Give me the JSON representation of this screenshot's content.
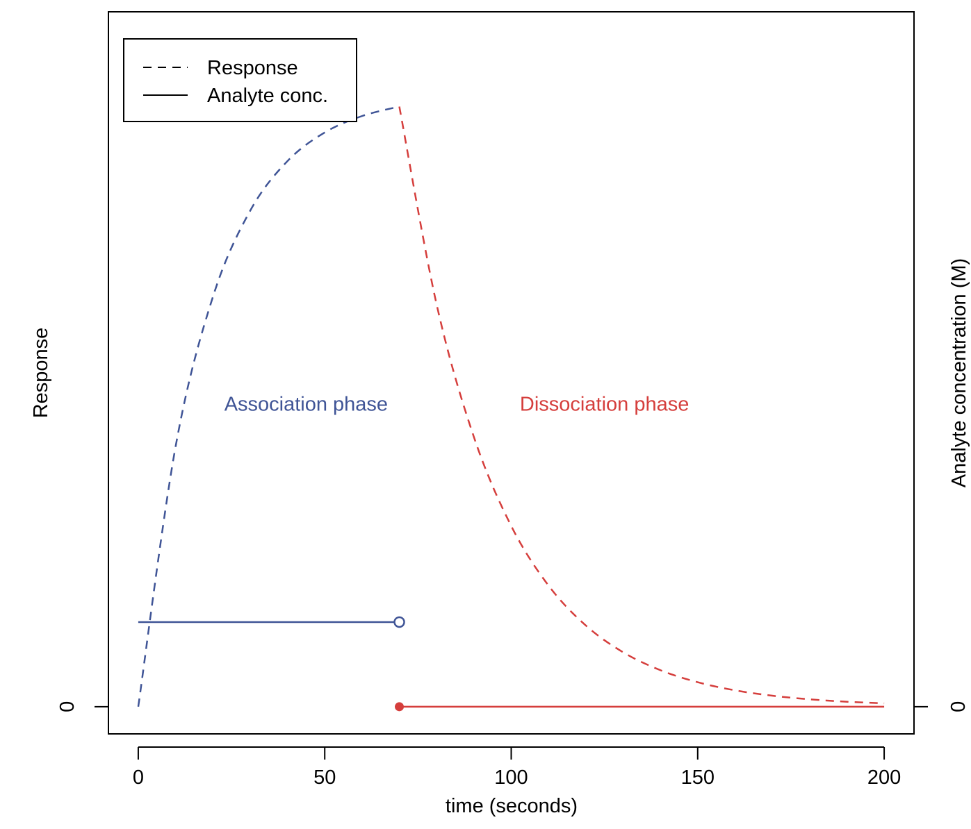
{
  "chart_data": {
    "type": "line",
    "title": "",
    "xlabel": "time (seconds)",
    "ylabel": "Response",
    "y2label": "Analyte concentration (M)",
    "xlim": [
      -8,
      208
    ],
    "ylim": [
      -0.045,
      1.15
    ],
    "x_ticks": [
      0,
      50,
      100,
      150,
      200
    ],
    "x_tick_labels": [
      "0",
      "50",
      "100",
      "150",
      "200"
    ],
    "y_ticks": [
      0
    ],
    "y_tick_labels": [
      "0"
    ],
    "y2_ticks": [
      0
    ],
    "y2_tick_labels": [
      "0"
    ],
    "grid": false,
    "legend": {
      "position": "top-left",
      "entries": [
        {
          "label": "Response",
          "style": "dashed"
        },
        {
          "label": "Analyte conc.",
          "style": "solid"
        }
      ]
    },
    "series": [
      {
        "phase": "association",
        "style": "dashed",
        "color": "#3F5496",
        "x": [
          0,
          10,
          20,
          30,
          40,
          50,
          60,
          70
        ],
        "y": [
          0,
          0.4302,
          0.678,
          0.8207,
          0.9029,
          0.9503,
          0.9775,
          0.9932
        ]
      },
      {
        "phase": "dissociation",
        "style": "dashed",
        "color": "#D53E3C",
        "x": [
          70,
          80,
          90,
          100,
          110,
          120,
          130,
          140,
          150,
          160,
          170,
          180,
          190,
          200
        ],
        "y": [
          0.9932,
          0.6657,
          0.4462,
          0.2991,
          0.2005,
          0.1344,
          0.0901,
          0.0604,
          0.0405,
          0.0271,
          0.0182,
          0.0122,
          0.0082,
          0.0055
        ]
      },
      {
        "phase": "association",
        "style": "solid",
        "color": "#3F5496",
        "x": [
          0,
          70
        ],
        "y": [
          0.14,
          0.14
        ],
        "end_marker": "open-circle"
      },
      {
        "phase": "dissociation",
        "style": "solid",
        "color": "#D53E3C",
        "x": [
          70,
          200
        ],
        "y": [
          0,
          0
        ],
        "start_marker": "filled-circle"
      }
    ],
    "annotations": [
      {
        "text": "Association phase",
        "x": 45,
        "y": 0.49,
        "color": "#3F5496"
      },
      {
        "text": "Dissociation phase",
        "x": 125,
        "y": 0.49,
        "color": "#D53E3C"
      }
    ]
  }
}
